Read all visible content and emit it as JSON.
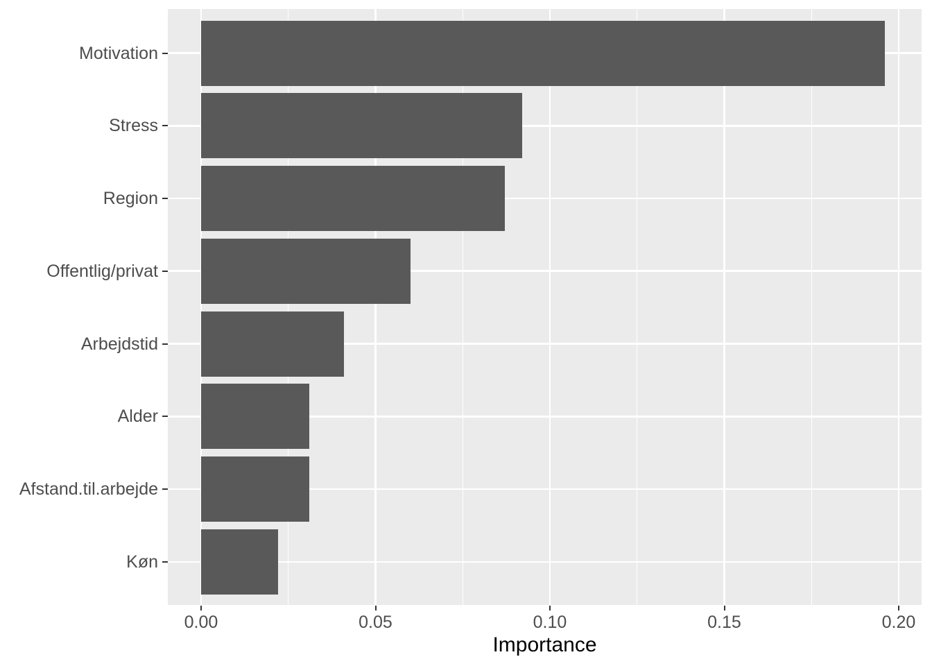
{
  "chart_data": {
    "type": "bar",
    "orientation": "horizontal",
    "title": "",
    "xlabel": "Importance",
    "ylabel": "",
    "categories": [
      "Motivation",
      "Stress",
      "Region",
      "Offentlig/privat",
      "Arbejdstid",
      "Alder",
      "Afstand.til.arbejde",
      "Køn"
    ],
    "values": [
      0.196,
      0.092,
      0.087,
      0.06,
      0.041,
      0.031,
      0.031,
      0.022
    ],
    "xlim": [
      -0.0098,
      0.2062
    ],
    "x_major_ticks": [
      0.0,
      0.05,
      0.1,
      0.15,
      0.2
    ],
    "x_tick_labels": [
      "0.00",
      "0.05",
      "0.10",
      "0.15",
      "0.20"
    ],
    "x_minor_ticks": [
      0.025,
      0.075,
      0.125,
      0.175
    ],
    "grid": "white major + minor verticals, major horizontals at category centers",
    "legend": "none",
    "colors": {
      "bar": "#595959",
      "panel_bg": "#EBEBEB",
      "grid": "#FFFFFF",
      "axis_text": "#4D4D4D",
      "axis_title": "#000000",
      "tick_mark": "#333333",
      "page_bg": "#FFFFFF"
    }
  }
}
